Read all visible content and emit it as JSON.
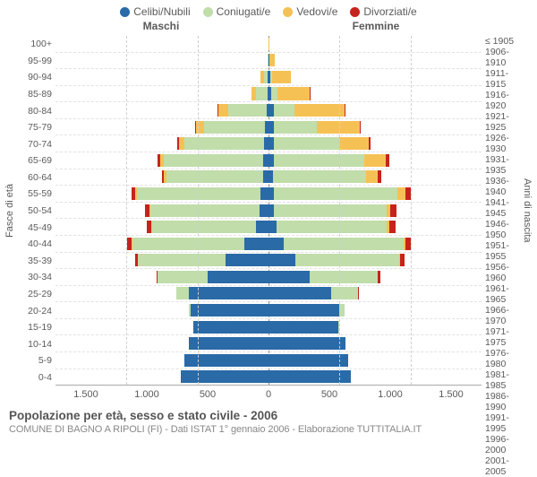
{
  "type": "population_pyramid",
  "legend": [
    {
      "label": "Celibi/Nubili",
      "color": "#2a6aa7"
    },
    {
      "label": "Coniugati/e",
      "color": "#c0ddaa"
    },
    {
      "label": "Vedovi/e",
      "color": "#f6c154"
    },
    {
      "label": "Divorziati/e",
      "color": "#c5241c"
    }
  ],
  "headers": {
    "male": "Maschi",
    "female": "Femmine"
  },
  "y_left_label": "Fasce di età",
  "y_right_label": "Anni di nascita",
  "x_ticks": [
    "1.500",
    "1.000",
    "500",
    "0",
    "500",
    "1.000",
    "1.500"
  ],
  "x_max": 1500,
  "title": "Popolazione per età, sesso e stato civile - 2006",
  "subtitle": "COMUNE DI BAGNO A RIPOLI (FI) - Dati ISTAT 1° gennaio 2006 - Elaborazione TUTTITALIA.IT",
  "styling": {
    "background": "#ffffff",
    "grid_color": "#cfcfcf",
    "row_divider_color": "#e2e2e2",
    "center_line_color": "#888888",
    "font_family": "Arial",
    "title_fontsize": 13.5,
    "label_fontsize": 11
  },
  "age_groups": [
    {
      "age": "100+",
      "birth": "≤ 1905",
      "male": {
        "single": 0,
        "married": 0,
        "widowed": 2,
        "divorced": 0
      },
      "female": {
        "single": 0,
        "married": 0,
        "widowed": 6,
        "divorced": 0
      }
    },
    {
      "age": "95-99",
      "birth": "1906-1910",
      "male": {
        "single": 2,
        "married": 2,
        "widowed": 5,
        "divorced": 0
      },
      "female": {
        "single": 4,
        "married": 2,
        "widowed": 40,
        "divorced": 0
      }
    },
    {
      "age": "90-94",
      "birth": "1911-1915",
      "male": {
        "single": 5,
        "married": 25,
        "widowed": 25,
        "divorced": 0
      },
      "female": {
        "single": 15,
        "married": 10,
        "widowed": 130,
        "divorced": 0
      }
    },
    {
      "age": "85-89",
      "birth": "1916-1920",
      "male": {
        "single": 8,
        "married": 80,
        "widowed": 35,
        "divorced": 0
      },
      "female": {
        "single": 20,
        "married": 40,
        "widowed": 230,
        "divorced": 2
      }
    },
    {
      "age": "80-84",
      "birth": "1921-1925",
      "male": {
        "single": 15,
        "married": 270,
        "widowed": 70,
        "divorced": 4
      },
      "female": {
        "single": 35,
        "married": 150,
        "widowed": 350,
        "divorced": 6
      }
    },
    {
      "age": "75-79",
      "birth": "1926-1930",
      "male": {
        "single": 25,
        "married": 430,
        "widowed": 55,
        "divorced": 6
      },
      "female": {
        "single": 40,
        "married": 300,
        "widowed": 300,
        "divorced": 10
      }
    },
    {
      "age": "70-74",
      "birth": "1931-1935",
      "male": {
        "single": 30,
        "married": 560,
        "widowed": 40,
        "divorced": 10
      },
      "female": {
        "single": 35,
        "married": 460,
        "widowed": 210,
        "divorced": 15
      }
    },
    {
      "age": "65-69",
      "birth": "1936-1940",
      "male": {
        "single": 40,
        "married": 700,
        "widowed": 25,
        "divorced": 15
      },
      "female": {
        "single": 35,
        "married": 640,
        "widowed": 150,
        "divorced": 25
      }
    },
    {
      "age": "60-64",
      "birth": "1941-1945",
      "male": {
        "single": 40,
        "married": 680,
        "widowed": 15,
        "divorced": 18
      },
      "female": {
        "single": 30,
        "married": 660,
        "widowed": 80,
        "divorced": 25
      }
    },
    {
      "age": "55-59",
      "birth": "1946-1950",
      "male": {
        "single": 55,
        "married": 870,
        "widowed": 12,
        "divorced": 25
      },
      "female": {
        "single": 40,
        "married": 870,
        "widowed": 55,
        "divorced": 35
      }
    },
    {
      "age": "50-54",
      "birth": "1951-1955",
      "male": {
        "single": 60,
        "married": 770,
        "widowed": 8,
        "divorced": 30
      },
      "female": {
        "single": 40,
        "married": 790,
        "widowed": 30,
        "divorced": 40
      }
    },
    {
      "age": "45-49",
      "birth": "1956-1960",
      "male": {
        "single": 90,
        "married": 730,
        "widowed": 5,
        "divorced": 30
      },
      "female": {
        "single": 55,
        "married": 780,
        "widowed": 18,
        "divorced": 40
      }
    },
    {
      "age": "40-44",
      "birth": "1961-1965",
      "male": {
        "single": 170,
        "married": 790,
        "widowed": 4,
        "divorced": 30
      },
      "female": {
        "single": 110,
        "married": 840,
        "widowed": 12,
        "divorced": 40
      }
    },
    {
      "age": "35-39",
      "birth": "1966-1970",
      "male": {
        "single": 300,
        "married": 620,
        "widowed": 2,
        "divorced": 20
      },
      "female": {
        "single": 190,
        "married": 730,
        "widowed": 6,
        "divorced": 30
      }
    },
    {
      "age": "30-34",
      "birth": "1971-1975",
      "male": {
        "single": 430,
        "married": 350,
        "widowed": 0,
        "divorced": 10
      },
      "female": {
        "single": 290,
        "married": 480,
        "widowed": 2,
        "divorced": 15
      }
    },
    {
      "age": "25-29",
      "birth": "1976-1980",
      "male": {
        "single": 560,
        "married": 90,
        "widowed": 0,
        "divorced": 2
      },
      "female": {
        "single": 440,
        "married": 190,
        "widowed": 0,
        "divorced": 4
      }
    },
    {
      "age": "20-24",
      "birth": "1981-1985",
      "male": {
        "single": 550,
        "married": 10,
        "widowed": 0,
        "divorced": 0
      },
      "female": {
        "single": 500,
        "married": 35,
        "divorced": 0,
        "widowed": 0
      }
    },
    {
      "age": "15-19",
      "birth": "1986-1990",
      "male": {
        "single": 530,
        "married": 0,
        "widowed": 0,
        "divorced": 0
      },
      "female": {
        "single": 490,
        "married": 2,
        "widowed": 0,
        "divorced": 0
      }
    },
    {
      "age": "10-14",
      "birth": "1991-1995",
      "male": {
        "single": 560,
        "married": 0,
        "widowed": 0,
        "divorced": 0
      },
      "female": {
        "single": 540,
        "married": 0,
        "widowed": 0,
        "divorced": 0
      }
    },
    {
      "age": "5-9",
      "birth": "1996-2000",
      "male": {
        "single": 590,
        "married": 0,
        "widowed": 0,
        "divorced": 0
      },
      "female": {
        "single": 560,
        "married": 0,
        "widowed": 0,
        "divorced": 0
      }
    },
    {
      "age": "0-4",
      "birth": "2001-2005",
      "male": {
        "single": 620,
        "married": 0,
        "widowed": 0,
        "divorced": 0
      },
      "female": {
        "single": 580,
        "married": 0,
        "widowed": 0,
        "divorced": 0
      }
    }
  ]
}
